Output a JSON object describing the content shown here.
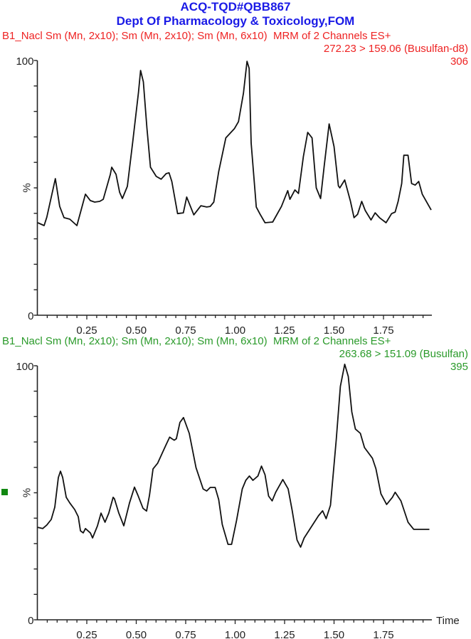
{
  "header": {
    "title": "ACQ-TQD#QBB867",
    "subtitle": "Dept Of Pharmacology & Toxicology,FOM"
  },
  "colors": {
    "title": "#1a1ae6",
    "top_header": "#ee2222",
    "bottom_header": "#2a9a2a",
    "trace": "#111111",
    "marker": "#118811"
  },
  "chart_data": [
    {
      "type": "line",
      "title": "B1_Nacl Sm (Mn, 2x10); Sm (Mn, 2x10); Sm (Mn, 6x10)",
      "scan": "MRM of 2 Channels ES+",
      "transition": "272.23 > 159.06 (Busulfan-d8)",
      "intensity": "306",
      "xlabel": "",
      "ylabel": "%",
      "xlim": [
        0,
        1.99
      ],
      "ylim": [
        0,
        100
      ],
      "xticks": [
        "0.25",
        "0.50",
        "0.75",
        "1.00",
        "1.25",
        "1.50",
        "1.75"
      ],
      "yticks": [
        "0",
        "100"
      ],
      "grid": false,
      "x": [
        0.002,
        0.034,
        0.048,
        0.091,
        0.113,
        0.135,
        0.164,
        0.2,
        0.236,
        0.243,
        0.268,
        0.29,
        0.315,
        0.333,
        0.369,
        0.376,
        0.398,
        0.416,
        0.43,
        0.455,
        0.482,
        0.511,
        0.522,
        0.536,
        0.554,
        0.572,
        0.601,
        0.626,
        0.651,
        0.666,
        0.68,
        0.709,
        0.738,
        0.755,
        0.791,
        0.827,
        0.856,
        0.874,
        0.892,
        0.917,
        0.953,
        0.996,
        1.017,
        1.042,
        1.06,
        1.071,
        1.081,
        1.107,
        1.126,
        1.151,
        1.19,
        1.234,
        1.266,
        1.277,
        1.302,
        1.32,
        1.345,
        1.367,
        1.389,
        1.41,
        1.432,
        1.45,
        1.475,
        1.5,
        1.522,
        1.529,
        1.554,
        1.583,
        1.601,
        1.619,
        1.64,
        1.658,
        1.687,
        1.708,
        1.73,
        1.763,
        1.791,
        1.809,
        1.824,
        1.842,
        1.853,
        1.874,
        1.892,
        1.91,
        1.928,
        1.946,
        1.991
      ],
      "y": [
        36.3,
        35.2,
        38.5,
        53.6,
        42.7,
        38.3,
        37.7,
        35.2,
        45.5,
        47.5,
        45.0,
        44.4,
        44.7,
        45.5,
        55.3,
        58.1,
        55.3,
        48.3,
        45.8,
        50.6,
        67.9,
        87.4,
        96.1,
        91.6,
        73.5,
        58.1,
        54.5,
        53.4,
        55.6,
        55.9,
        52.5,
        39.9,
        40.2,
        46.4,
        39.4,
        43.0,
        42.5,
        42.7,
        44.4,
        56.4,
        69.6,
        73.2,
        76.0,
        87.2,
        99.7,
        96.9,
        67.6,
        42.5,
        39.7,
        36.3,
        36.6,
        42.7,
        48.9,
        45.5,
        49.2,
        47.8,
        62.3,
        71.8,
        69.6,
        50.0,
        45.8,
        58.4,
        75.1,
        66.2,
        50.8,
        50.0,
        53.1,
        44.7,
        38.3,
        39.6,
        44.7,
        41.1,
        37.4,
        40.2,
        38.3,
        36.3,
        39.9,
        40.5,
        44.7,
        51.7,
        62.8,
        62.8,
        51.7,
        51.1,
        52.5,
        47.5,
        41.3
      ]
    },
    {
      "type": "line",
      "title": "B1_Nacl Sm (Mn, 2x10); Sm (Mn, 2x10); Sm (Mn, 6x10)",
      "scan": "MRM of 2 Channels ES+",
      "transition": "263.68 > 151.09 (Busulfan)",
      "intensity": "395",
      "xlabel": "Time",
      "ylabel": "%",
      "xlim": [
        0,
        1.99
      ],
      "ylim": [
        0,
        100
      ],
      "xticks": [
        "0.25",
        "0.50",
        "0.75",
        "1.00",
        "1.25",
        "1.50",
        "1.75"
      ],
      "yticks": [
        "0",
        "100"
      ],
      "grid": false,
      "x": [
        0.002,
        0.027,
        0.048,
        0.07,
        0.088,
        0.106,
        0.117,
        0.128,
        0.146,
        0.164,
        0.189,
        0.207,
        0.218,
        0.232,
        0.243,
        0.268,
        0.279,
        0.304,
        0.322,
        0.342,
        0.361,
        0.383,
        0.39,
        0.412,
        0.437,
        0.466,
        0.491,
        0.509,
        0.534,
        0.552,
        0.567,
        0.585,
        0.608,
        0.649,
        0.669,
        0.68,
        0.692,
        0.703,
        0.721,
        0.739,
        0.768,
        0.802,
        0.838,
        0.856,
        0.874,
        0.899,
        0.917,
        0.935,
        0.964,
        0.982,
        1.007,
        1.036,
        1.054,
        1.072,
        1.09,
        1.115,
        1.133,
        1.151,
        1.169,
        1.187,
        1.205,
        1.241,
        1.268,
        1.288,
        1.313,
        1.331,
        1.349,
        1.421,
        1.442,
        1.46,
        1.482,
        1.511,
        1.532,
        1.554,
        1.572,
        1.59,
        1.608,
        1.633,
        1.654,
        1.694,
        1.712,
        1.737,
        1.766,
        1.795,
        1.809,
        1.838,
        1.874,
        1.903,
        1.982
      ],
      "y": [
        36.4,
        35.9,
        37.3,
        39.5,
        44.3,
        56.0,
        58.5,
        56.0,
        48.2,
        46.0,
        43.4,
        40.6,
        35.0,
        34.2,
        35.9,
        34.2,
        32.2,
        37.0,
        42.0,
        38.4,
        42.0,
        48.2,
        47.6,
        42.0,
        37.0,
        46.0,
        52.2,
        48.9,
        43.9,
        42.8,
        49.0,
        59.4,
        61.6,
        68.6,
        71.9,
        71.3,
        70.7,
        71.3,
        77.7,
        79.6,
        73.4,
        59.9,
        51.5,
        50.7,
        52.1,
        52.1,
        47.3,
        37.5,
        29.7,
        29.7,
        39.0,
        51.5,
        54.9,
        56.6,
        54.9,
        56.6,
        60.5,
        57.1,
        48.7,
        46.8,
        50.2,
        55.2,
        51.5,
        43.1,
        31.4,
        28.6,
        32.2,
        40.9,
        42.9,
        39.8,
        45.1,
        70.9,
        91.9,
        100.6,
        95.8,
        81.8,
        75.1,
        73.4,
        67.8,
        63.6,
        59.4,
        49.6,
        45.4,
        48.2,
        50.2,
        46.8,
        38.4,
        35.6,
        35.6
      ]
    }
  ],
  "top_header": {
    "line1_left": "B1_Nacl Sm (Mn, 2x10); Sm (Mn, 2x10); Sm (Mn, 6x10)",
    "line1_right": "MRM of 2 Channels ES+",
    "transition": "272.23 > 159.06 (Busulfan-d8)",
    "intensity": "306"
  },
  "bottom_header": {
    "line1_left": "B1_Nacl Sm (Mn, 2x10); Sm (Mn, 2x10); Sm (Mn, 6x10)",
    "line1_right": "MRM of 2 Channels ES+",
    "transition": "263.68 > 151.09 (Busulfan)",
    "intensity": "395"
  },
  "axis": {
    "y_max_label": "100",
    "y_min_label": "0",
    "y_unit_label": "%",
    "x_label": "Time",
    "x_ticks": [
      "0.25",
      "0.50",
      "0.75",
      "1.00",
      "1.25",
      "1.50",
      "1.75"
    ]
  }
}
